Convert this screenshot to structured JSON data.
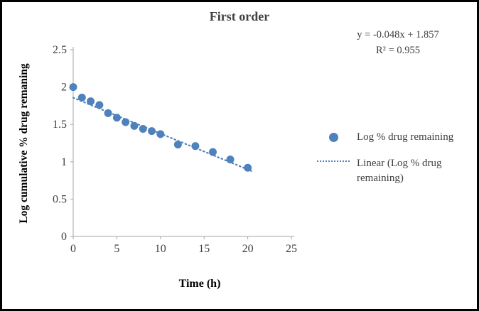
{
  "chart_data": {
    "type": "scatter",
    "title": "First order",
    "xlabel": "Time (h)",
    "ylabel": "Log cumulative % drug remaning",
    "xlim": [
      0,
      25
    ],
    "ylim": [
      0,
      2.5
    ],
    "x_ticks": [
      0,
      5,
      10,
      15,
      20,
      25
    ],
    "y_ticks": [
      0,
      0.5,
      1,
      1.5,
      2,
      2.5
    ],
    "grid": false,
    "legend_position": "right",
    "marker_color": "#4F81BD",
    "line_color": "#4F81BD",
    "annotation": [
      "y = -0.048x + 1.857",
      "R² = 0.955"
    ],
    "series": [
      {
        "name": "Log % drug remaining",
        "type": "scatter",
        "x": [
          0,
          1,
          2,
          3,
          4,
          5,
          6,
          7,
          8,
          9,
          10,
          12,
          14,
          16,
          18,
          20
        ],
        "y": [
          2.0,
          1.86,
          1.81,
          1.76,
          1.65,
          1.59,
          1.53,
          1.48,
          1.44,
          1.41,
          1.37,
          1.23,
          1.21,
          1.13,
          1.03,
          0.92
        ]
      },
      {
        "name": "Linear (Log % drug remaining)",
        "type": "trendline",
        "style": "dotted",
        "slope": -0.048,
        "intercept": 1.857,
        "r_squared": 0.955,
        "x_range": [
          0,
          20.5
        ]
      }
    ],
    "legend": [
      "Log % drug remaining",
      "Linear (Log % drug remaining)"
    ]
  }
}
